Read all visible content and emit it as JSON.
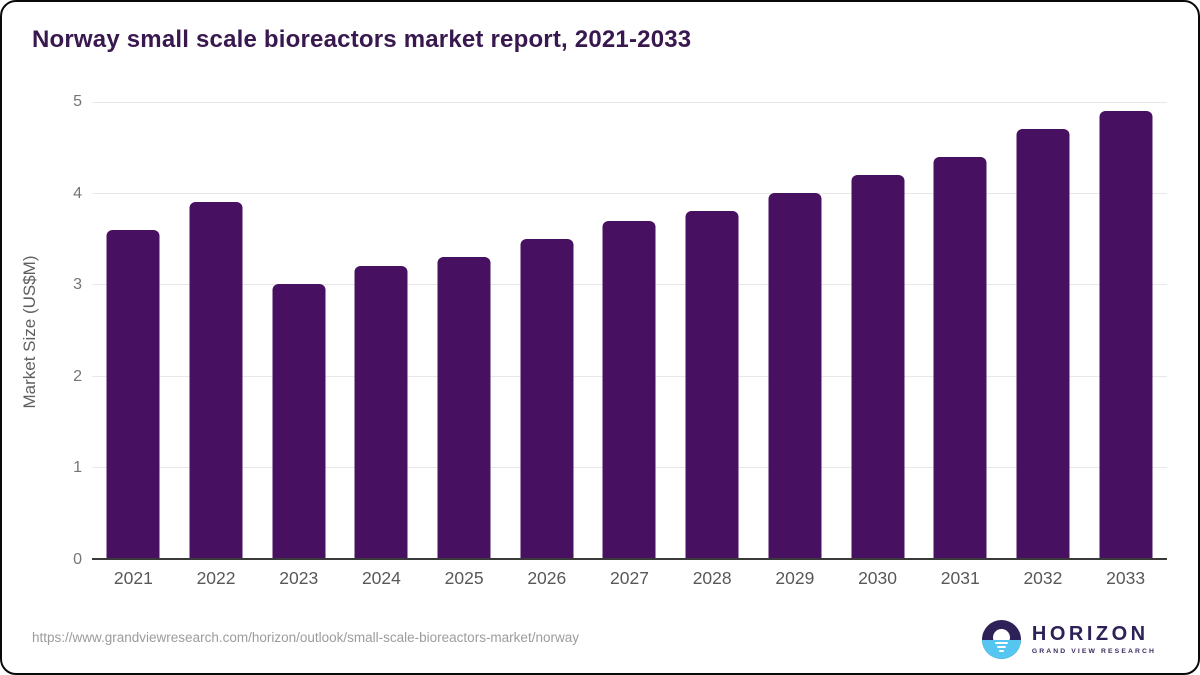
{
  "page": {
    "title": "Norway small scale bioreactors market report, 2021-2033"
  },
  "chart_data": {
    "type": "bar",
    "title": "Norway small scale bioreactors market report, 2021-2033",
    "categories": [
      "2021",
      "2022",
      "2023",
      "2024",
      "2025",
      "2026",
      "2027",
      "2028",
      "2029",
      "2030",
      "2031",
      "2032",
      "2033"
    ],
    "values": [
      3.6,
      3.9,
      3.0,
      3.2,
      3.3,
      3.5,
      3.7,
      3.8,
      4.0,
      4.2,
      4.4,
      4.7,
      4.9
    ],
    "xlabel": "",
    "ylabel": "Market Size (US$M)",
    "ylim": [
      0,
      5
    ],
    "yticks": [
      0,
      1,
      2,
      3,
      4,
      5
    ],
    "grid": true,
    "legend": "none",
    "bar_color": "#471061"
  },
  "footer": {
    "source_url": "https://www.grandviewresearch.com/horizon/outlook/small-scale-bioreactors-market/norway",
    "brand": {
      "icon": "horizon-sun-over-sea-icon",
      "name": "HORIZON",
      "subtitle": "GRAND VIEW RESEARCH",
      "purple": "#2e2157",
      "blue": "#55c6f0"
    }
  }
}
